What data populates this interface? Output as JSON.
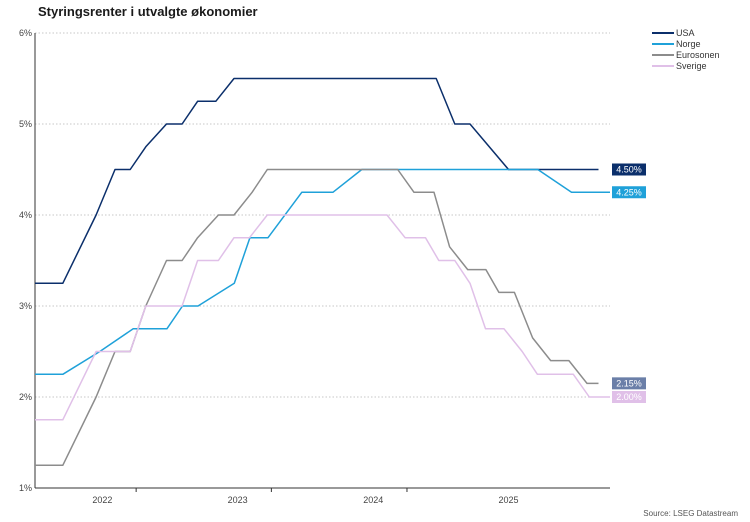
{
  "chart_data": {
    "type": "line",
    "title": "Styringsrenter i utvalgte økonomier",
    "source": "Source: LSEG Datastream",
    "xlabel": "",
    "ylabel": "",
    "ylim": [
      1,
      6
    ],
    "xlim": [
      "2021-10-01",
      "2025-12-31"
    ],
    "y_ticks": [
      "1%",
      "2%",
      "3%",
      "4%",
      "5%",
      "6%"
    ],
    "x_tick_labels": [
      {
        "label": "2022",
        "at": "2022-04-01"
      },
      {
        "label": "2023",
        "at": "2023-04-01"
      },
      {
        "label": "2024",
        "at": "2024-04-01"
      },
      {
        "label": "2025",
        "at": "2025-04-01"
      }
    ],
    "x_tick_marks": [
      "2022-07-01",
      "2023-07-01",
      "2024-07-01"
    ],
    "grid": true,
    "legend_position": "top-right",
    "series": [
      {
        "name": "USA",
        "color": "#0b2f6b",
        "end_label": "4.50%",
        "label_color": "#0b2f6b",
        "points": [
          [
            "2021-10-01",
            3.25
          ],
          [
            "2021-12-15",
            3.25
          ],
          [
            "2022-03-15",
            4.0
          ],
          [
            "2022-05-05",
            4.5
          ],
          [
            "2022-06-15",
            4.5
          ],
          [
            "2022-07-27",
            4.75
          ],
          [
            "2022-09-21",
            5.0
          ],
          [
            "2022-11-02",
            5.0
          ],
          [
            "2022-12-14",
            5.25
          ],
          [
            "2023-02-01",
            5.25
          ],
          [
            "2023-03-22",
            5.5
          ],
          [
            "2023-05-03",
            5.5
          ],
          [
            "2023-07-26",
            5.5
          ],
          [
            "2024-09-18",
            5.5
          ],
          [
            "2024-11-07",
            5.0
          ],
          [
            "2024-12-18",
            5.0
          ],
          [
            "2025-04-01",
            4.5
          ],
          [
            "2025-11-30",
            4.5
          ]
        ]
      },
      {
        "name": "Norge",
        "color": "#1fa1d9",
        "end_label": "4.25%",
        "label_color": "#1fa1d9",
        "points": [
          [
            "2021-10-01",
            2.25
          ],
          [
            "2021-12-15",
            2.25
          ],
          [
            "2022-03-25",
            2.5
          ],
          [
            "2022-06-23",
            2.75
          ],
          [
            "2022-09-22",
            2.75
          ],
          [
            "2022-11-03",
            3.0
          ],
          [
            "2022-12-15",
            3.0
          ],
          [
            "2023-03-23",
            3.25
          ],
          [
            "2023-05-04",
            3.75
          ],
          [
            "2023-06-22",
            3.75
          ],
          [
            "2023-09-21",
            4.25
          ],
          [
            "2023-12-14",
            4.25
          ],
          [
            "2024-03-01",
            4.5
          ],
          [
            "2025-06-19",
            4.5
          ],
          [
            "2025-09-18",
            4.25
          ],
          [
            "2025-12-31",
            4.25
          ]
        ]
      },
      {
        "name": "Eurosonen",
        "color": "#8c8c8c",
        "end_label": "2.15%",
        "label_color": "#6b7fa8",
        "points": [
          [
            "2021-10-01",
            1.25
          ],
          [
            "2021-12-15",
            1.25
          ],
          [
            "2022-03-15",
            2.0
          ],
          [
            "2022-05-05",
            2.5
          ],
          [
            "2022-06-15",
            2.5
          ],
          [
            "2022-07-27",
            3.0
          ],
          [
            "2022-09-21",
            3.5
          ],
          [
            "2022-11-02",
            3.5
          ],
          [
            "2022-12-14",
            3.75
          ],
          [
            "2023-02-08",
            4.0
          ],
          [
            "2023-03-22",
            4.0
          ],
          [
            "2023-05-10",
            4.25
          ],
          [
            "2023-06-20",
            4.5
          ],
          [
            "2024-06-06",
            4.5
          ],
          [
            "2024-07-20",
            4.25
          ],
          [
            "2024-09-12",
            4.25
          ],
          [
            "2024-10-24",
            3.65
          ],
          [
            "2024-12-12",
            3.4
          ],
          [
            "2025-01-30",
            3.4
          ],
          [
            "2025-03-06",
            3.15
          ],
          [
            "2025-04-17",
            3.15
          ],
          [
            "2025-06-05",
            2.65
          ],
          [
            "2025-07-24",
            2.4
          ],
          [
            "2025-09-11",
            2.4
          ],
          [
            "2025-10-30",
            2.15
          ],
          [
            "2025-11-30",
            2.15
          ]
        ]
      },
      {
        "name": "Sverige",
        "color": "#e0c0e8",
        "end_label": "2.00%",
        "label_color": "#e0c0e8",
        "points": [
          [
            "2021-10-01",
            1.75
          ],
          [
            "2021-12-15",
            1.75
          ],
          [
            "2022-03-15",
            2.5
          ],
          [
            "2022-06-15",
            2.5
          ],
          [
            "2022-07-27",
            3.0
          ],
          [
            "2022-11-02",
            3.0
          ],
          [
            "2022-12-14",
            3.5
          ],
          [
            "2023-02-08",
            3.5
          ],
          [
            "2023-03-22",
            3.75
          ],
          [
            "2023-05-03",
            3.75
          ],
          [
            "2023-06-20",
            4.0
          ],
          [
            "2024-05-08",
            4.0
          ],
          [
            "2024-06-26",
            3.75
          ],
          [
            "2024-08-20",
            3.75
          ],
          [
            "2024-09-25",
            3.5
          ],
          [
            "2024-11-07",
            3.5
          ],
          [
            "2024-12-18",
            3.25
          ],
          [
            "2025-01-29",
            2.75
          ],
          [
            "2025-03-20",
            2.75
          ],
          [
            "2025-05-08",
            2.5
          ],
          [
            "2025-06-18",
            2.25
          ],
          [
            "2025-09-23",
            2.25
          ],
          [
            "2025-11-05",
            2.0
          ],
          [
            "2025-12-31",
            2.0
          ]
        ]
      }
    ]
  }
}
